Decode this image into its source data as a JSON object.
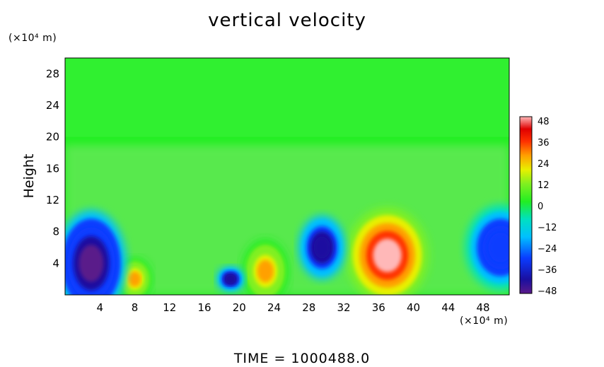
{
  "chart_data": {
    "type": "heatmap",
    "title": "vertical velocity",
    "ylabel": "Height",
    "x_unit": "(×10⁴ m)",
    "y_unit": "(×10⁴ m)",
    "footer": "TIME  =  1000488.0",
    "xlim": [
      0,
      51
    ],
    "ylim": [
      0,
      30
    ],
    "x_ticks": [
      "4",
      "8",
      "12",
      "16",
      "20",
      "24",
      "28",
      "32",
      "36",
      "40",
      "44",
      "48"
    ],
    "y_ticks": [
      "4",
      "8",
      "12",
      "16",
      "20",
      "24",
      "28"
    ],
    "colorbar": {
      "range": [
        -48,
        48
      ],
      "ticks": [
        "48",
        "36",
        "24",
        "12",
        "0",
        "−12",
        "−24",
        "−36",
        "−48"
      ]
    },
    "features": [
      {
        "x": 37,
        "y": 5,
        "rx": 3.5,
        "ry": 4.5,
        "value": 48
      },
      {
        "x": 23,
        "y": 3,
        "rx": 2,
        "ry": 3,
        "value": 30
      },
      {
        "x": 8,
        "y": 2,
        "rx": 1.5,
        "ry": 2,
        "value": 30
      },
      {
        "x": 3,
        "y": 4,
        "rx": 3,
        "ry": 5,
        "value": -44
      },
      {
        "x": 29.5,
        "y": 6,
        "rx": 2,
        "ry": 3,
        "value": -38
      },
      {
        "x": 19,
        "y": 2,
        "rx": 1.2,
        "ry": 1.2,
        "value": -40
      },
      {
        "x": 50,
        "y": 6,
        "rx": 3,
        "ry": 4,
        "value": -30
      }
    ]
  }
}
